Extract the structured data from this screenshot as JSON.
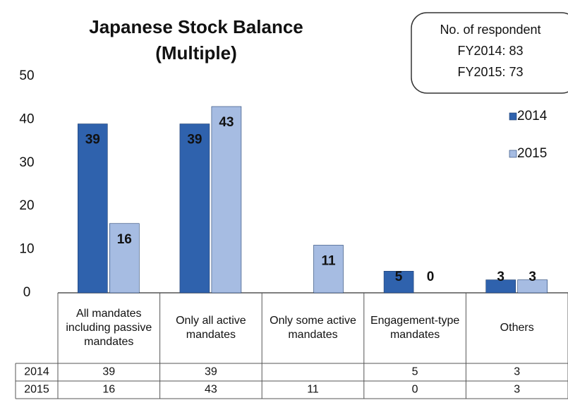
{
  "chart_data": {
    "type": "bar",
    "title": "Japanese Stock Balance",
    "subtitle": "(Multiple)",
    "note": [
      "No. of respondent",
      "FY2014: 83",
      "FY2015: 73"
    ],
    "categories": [
      "All mandates including passive mandates",
      "Only all active mandates",
      "Only some active mandates",
      "Engagement-type mandates",
      "Others"
    ],
    "series": [
      {
        "name": "2014",
        "color": "#2f62ad",
        "values": [
          39,
          39,
          null,
          5,
          3
        ]
      },
      {
        "name": "2015",
        "color": "#a6bce2",
        "values": [
          16,
          43,
          11,
          0,
          3
        ]
      }
    ],
    "ylim": [
      0,
      50
    ],
    "yticks": [
      0,
      10,
      20,
      30,
      40,
      50
    ],
    "grid": false,
    "legend": "right"
  }
}
